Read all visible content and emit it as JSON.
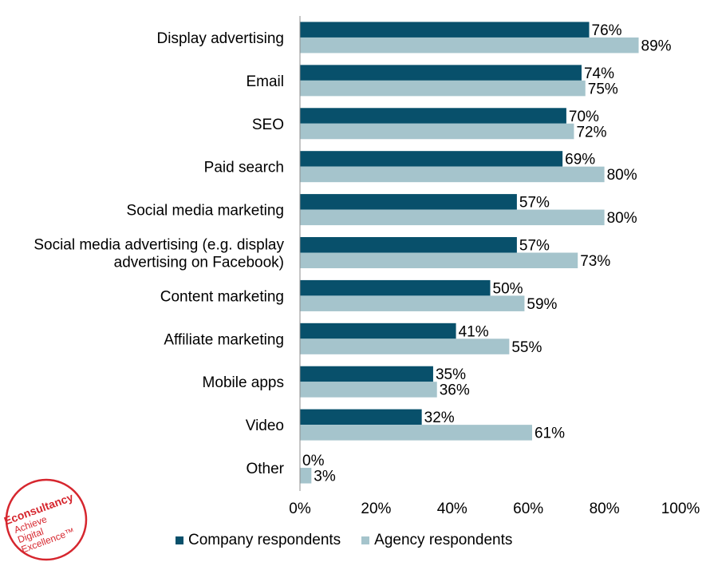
{
  "chart_data": {
    "type": "bar",
    "orientation": "horizontal",
    "categories": [
      [
        "Display advertising"
      ],
      [
        "Email"
      ],
      [
        "SEO"
      ],
      [
        "Paid search"
      ],
      [
        "Social media marketing"
      ],
      [
        "Social media advertising (e.g. display",
        "advertising on Facebook)"
      ],
      [
        "Content marketing"
      ],
      [
        "Affiliate marketing"
      ],
      [
        "Mobile apps"
      ],
      [
        "Video"
      ],
      [
        "Other"
      ]
    ],
    "series": [
      {
        "name": "Company respondents",
        "color": "#08506b",
        "values": [
          76,
          74,
          70,
          69,
          57,
          57,
          50,
          41,
          35,
          32,
          0
        ],
        "labels": [
          "76%",
          "74%",
          "70%",
          "69%",
          "57%",
          "57%",
          "50%",
          "41%",
          "35%",
          "32%",
          "0%"
        ]
      },
      {
        "name": "Agency respondents",
        "color": "#a5c4cc",
        "values": [
          89,
          75,
          72,
          80,
          80,
          73,
          59,
          55,
          36,
          61,
          3
        ],
        "labels": [
          "89%",
          "75%",
          "72%",
          "80%",
          "80%",
          "73%",
          "59%",
          "55%",
          "36%",
          "61%",
          "3%"
        ]
      }
    ],
    "xlim": [
      0,
      100
    ],
    "xticks": [
      "0%",
      "20%",
      "40%",
      "60%",
      "80%",
      "100%"
    ],
    "grid": false,
    "legend_position": "bottom"
  },
  "logo": {
    "brand": "Econsultancy",
    "tagline": [
      "Achieve",
      "Digital",
      "Excellence™"
    ],
    "color": "#d6262e"
  }
}
